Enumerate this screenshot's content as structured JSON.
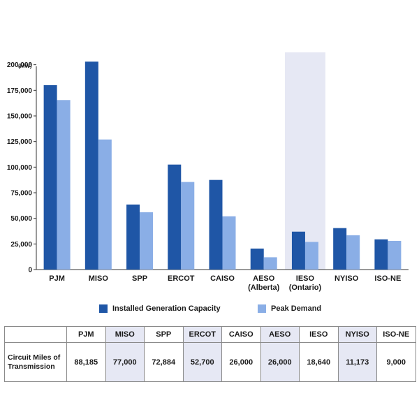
{
  "chart_data": {
    "type": "bar",
    "unit_label": "(MW)",
    "categories": [
      "PJM",
      "MISO",
      "SPP",
      "ERCOT",
      "CAISO",
      "AESO\n(Alberta)",
      "IESO\n(Ontario)",
      "NYISO",
      "ISO-NE"
    ],
    "series": [
      {
        "name": "Installed Generation Capacity",
        "color": "#1f56a6",
        "values": [
          180000,
          203000,
          63500,
          102500,
          87500,
          20500,
          37000,
          40500,
          29500
        ]
      },
      {
        "name": "Peak Demand",
        "color": "#8aaee6",
        "values": [
          165500,
          127000,
          56000,
          85500,
          52000,
          12000,
          27000,
          33500,
          28000
        ]
      }
    ],
    "ylim": [
      0,
      210000
    ],
    "yticks": [
      0,
      25000,
      50000,
      75000,
      100000,
      125000,
      150000,
      175000,
      200000
    ],
    "ytick_labels": [
      "0",
      "25,000",
      "50,000",
      "75,000",
      "100,000",
      "125,000",
      "150,000",
      "175,000",
      "200,000"
    ],
    "highlighted_category": "IESO\n(Ontario)",
    "highlight_color": "#e6e8f4",
    "legend_position": "bottom"
  },
  "table": {
    "headers": [
      "",
      "PJM",
      "MISO",
      "SPP",
      "ERCOT",
      "CAISO",
      "AESO",
      "IESO",
      "NYISO",
      "ISO-NE"
    ],
    "row_label": "Circuit Miles of Transmission",
    "values": [
      "88,185",
      "77,000",
      "72,884",
      "52,700",
      "26,000",
      "26,000",
      "18,640",
      "11,173",
      "9,000"
    ],
    "shaded_columns": [
      "MISO",
      "ERCOT",
      "AESO",
      "NYISO"
    ],
    "shade_color": "#e6e8f4"
  }
}
